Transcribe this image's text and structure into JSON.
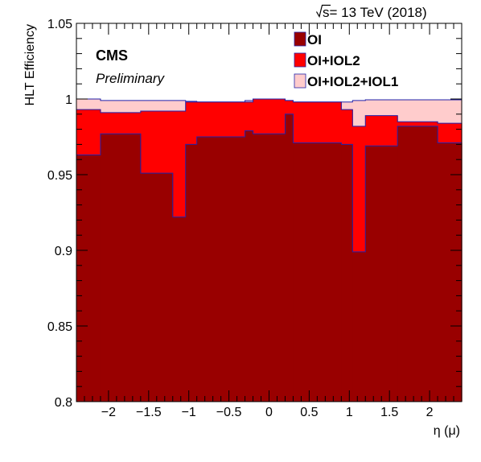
{
  "header": {
    "energy_label": "s= 13 TeV (2018)",
    "experiment": "CMS",
    "status": "Preliminary"
  },
  "chart_data": {
    "type": "bar",
    "title": "",
    "xlabel": "η (μ)",
    "ylabel": "HLT Efficiency",
    "xlim": [
      -2.4,
      2.4
    ],
    "ylim": [
      0.8,
      1.05
    ],
    "x_ticks": [
      -2,
      -1.5,
      -1,
      -0.5,
      0,
      0.5,
      1,
      1.5,
      2
    ],
    "x_tick_labels": [
      "−2",
      "−1.5",
      "−1",
      "−0.5",
      "0",
      "0.5",
      "1",
      "1.5",
      "2"
    ],
    "y_ticks": [
      0.8,
      0.85,
      0.9,
      0.95,
      1,
      1.05
    ],
    "y_tick_labels": [
      "0.8",
      "0.85",
      "0.9",
      "0.95",
      "1",
      "1.05"
    ],
    "bin_edges": [
      -2.4,
      -2.1,
      -1.6,
      -1.2,
      -1.04,
      -0.9,
      -0.3,
      -0.2,
      0,
      0.2,
      0.3,
      0.9,
      1.04,
      1.2,
      1.6,
      2.1,
      2.4
    ],
    "legend_position": "top-right",
    "series": [
      {
        "name": "OI+IOL2+IOL1",
        "color": "#ffcccc",
        "values": [
          1.0,
          0.999,
          0.999,
          0.999,
          0.9985,
          0.998,
          0.999,
          1.0,
          1.0,
          0.999,
          0.998,
          0.998,
          0.999,
          0.9995,
          0.9995,
          0.9995
        ]
      },
      {
        "name": "OI+IOL2",
        "color": "#ff0000",
        "values": [
          0.993,
          0.991,
          0.992,
          0.992,
          0.998,
          0.998,
          0.998,
          1.0,
          1.0,
          0.999,
          0.998,
          0.993,
          0.982,
          0.989,
          0.985,
          0.984
        ]
      },
      {
        "name": "OI",
        "color": "#990000",
        "values": [
          0.963,
          0.977,
          0.951,
          0.922,
          0.97,
          0.975,
          0.979,
          0.977,
          0.977,
          0.99,
          0.971,
          0.97,
          0.899,
          0.969,
          0.982,
          0.971
        ]
      }
    ]
  }
}
